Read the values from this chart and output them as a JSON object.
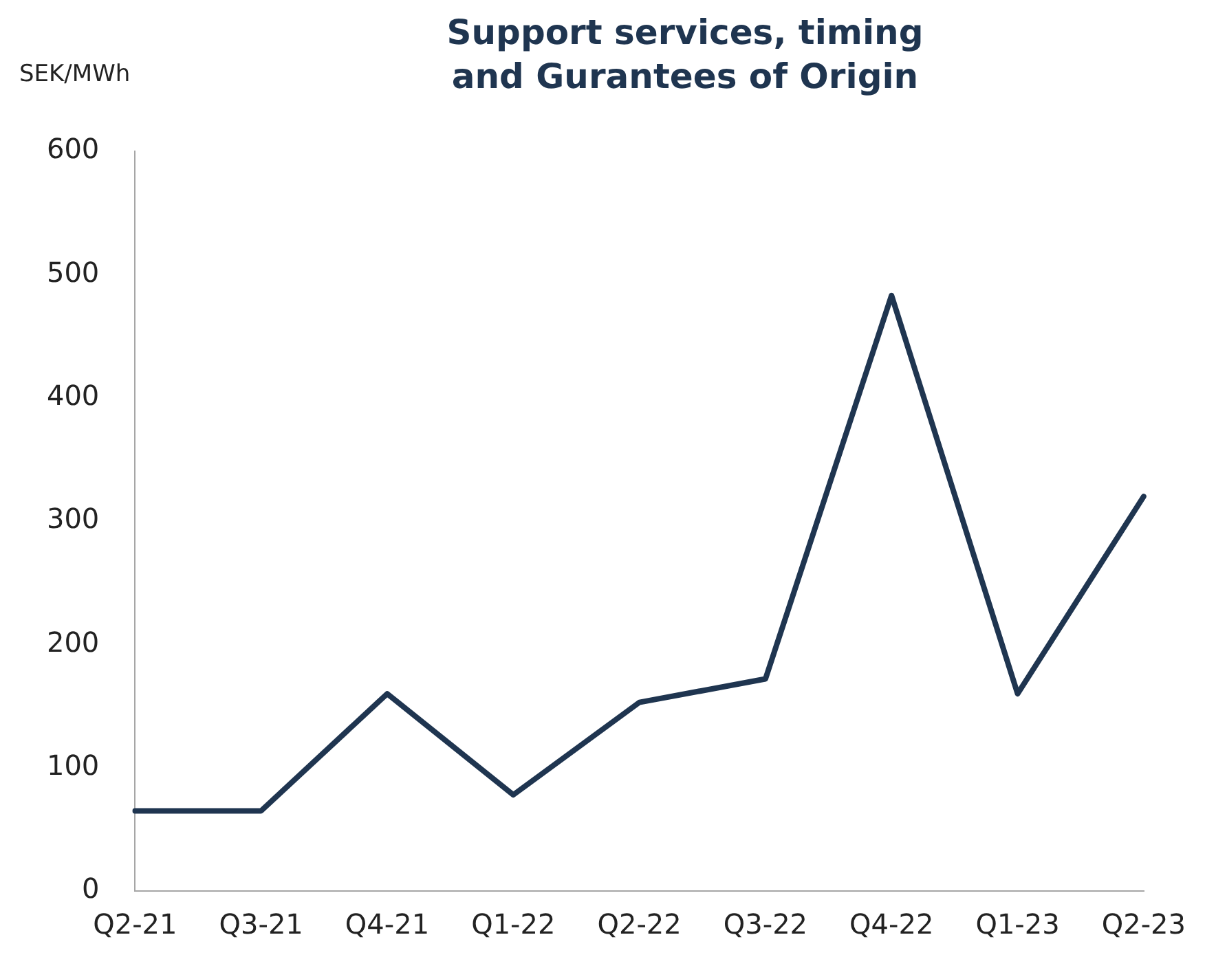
{
  "chart_data": {
    "type": "line",
    "title": "Support services, timing and Gurantees of Origin",
    "ylabel": "SEK/MWh",
    "categories": [
      "Q2-21",
      "Q3-21",
      "Q4-21",
      "Q1-22",
      "Q2-22",
      "Q3-22",
      "Q4-22",
      "Q1-23",
      "Q2-23"
    ],
    "series": [
      {
        "color": "#1f3550",
        "values": [
          65,
          65,
          160,
          78,
          153,
          172,
          483,
          160,
          320
        ]
      }
    ],
    "ylim": [
      0,
      600
    ],
    "yticks": [
      0,
      100,
      200,
      300,
      400,
      500,
      600
    ],
    "grid": false,
    "legend": false,
    "marker": "none",
    "line_style": "solid"
  }
}
